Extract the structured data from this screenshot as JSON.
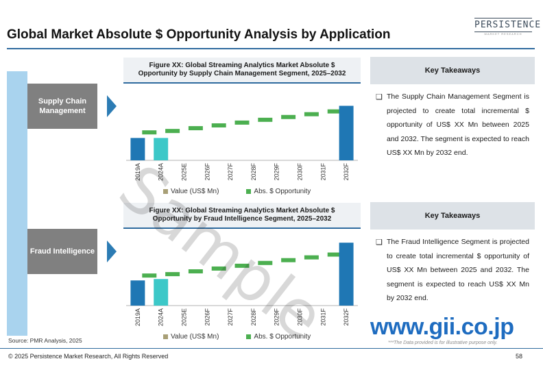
{
  "title": "Global Market Absolute $ Opportunity Analysis by Application",
  "logo": {
    "word": "PERSISTENCE",
    "sub": "MARKET RESEARCH"
  },
  "segments": [
    {
      "label": "Supply Chain Management"
    },
    {
      "label": "Fraud Intelligence"
    }
  ],
  "figures": [
    {
      "title": "Figure XX: Global Streaming Analytics Market Absolute $ Opportunity by Supply Chain Management Segment, 2025–2032"
    },
    {
      "title": "Figure XX: Global Streaming Analytics Market Absolute $ Opportunity by Fraud Intelligence Segment, 2025–2032"
    }
  ],
  "legend": {
    "value_label": "Value (US$ Mn)",
    "abs_label": "Abs. $ Opportunity",
    "value_color": "#a89f76",
    "abs_color": "#4caf50"
  },
  "key_takeaways": [
    {
      "heading": "Key Takeaways",
      "bullet": "❑",
      "text": "The Supply Chain Management Segment is projected to create total incremental $ opportunity of US$ XX Mn between 2025 and 2032. The segment is expected to reach US$ XX Mn by 2032 end."
    },
    {
      "heading": "Key Takeaways",
      "bullet": "❑",
      "text": "The Fraud Intelligence Segment is projected to create total incremental $ opportunity of US$ XX Mn between 2025 and 2032. The segment is expected to reach US$ XX Mn by 2032 end."
    }
  ],
  "source": "Source: PMR Analysis, 2025",
  "copyright": "© 2025 Persistence Market Research, All Rights Reserved",
  "page_number": "58",
  "gii_mark": "www.gii.co.jp",
  "disclaimer": "***The Data provided is for illustrative purpose only.",
  "watermark": "Sample",
  "chart_data": [
    {
      "type": "bar",
      "categories": [
        "2019A",
        "2024A",
        "2025E",
        "2026F",
        "2027F",
        "2028F",
        "2029F",
        "2030F",
        "2031F",
        "2032F"
      ],
      "values": [
        32,
        32,
        null,
        null,
        null,
        null,
        null,
        null,
        null,
        78
      ],
      "bar_colors": [
        "#1f77b4",
        "#3cc8c8",
        null,
        null,
        null,
        null,
        null,
        null,
        null,
        "#1f77b4"
      ],
      "abs_opportunity": [
        40,
        42,
        46,
        50,
        54,
        58,
        62,
        66,
        70,
        null
      ],
      "ylim": [
        0,
        100
      ]
    },
    {
      "type": "bar",
      "categories": [
        "2019A",
        "2024A",
        "2025E",
        "2026F",
        "2027F",
        "2028F",
        "2029F",
        "2030F",
        "2031F",
        "2032F"
      ],
      "values": [
        36,
        38,
        null,
        null,
        null,
        null,
        null,
        null,
        null,
        90
      ],
      "bar_colors": [
        "#1f77b4",
        "#3cc8c8",
        null,
        null,
        null,
        null,
        null,
        null,
        null,
        "#1f77b4"
      ],
      "abs_opportunity": [
        43,
        45,
        49,
        53,
        57,
        61,
        65,
        69,
        73,
        null
      ],
      "ylim": [
        0,
        100
      ]
    }
  ]
}
